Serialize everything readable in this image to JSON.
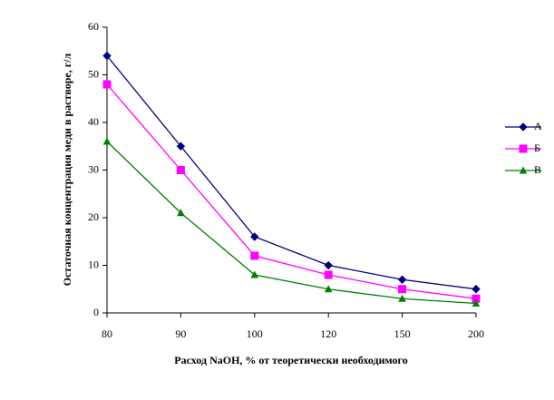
{
  "chart_data": {
    "type": "line",
    "x_label": "Расход NaOH, % от теоретически необходимого",
    "y_label": "Остаточная концентрация меди в растворе, г/л",
    "categories": [
      80,
      90,
      100,
      120,
      150,
      200
    ],
    "series": [
      {
        "name": "А",
        "color": "#000080",
        "marker": "diamond",
        "values": [
          54,
          35,
          16,
          10,
          7,
          5
        ]
      },
      {
        "name": "Б",
        "color": "#ff00ff",
        "marker": "square",
        "values": [
          48,
          30,
          12,
          8,
          5,
          3
        ]
      },
      {
        "name": "В",
        "color": "#008000",
        "marker": "triangle",
        "values": [
          36,
          21,
          8,
          5,
          3,
          2
        ]
      }
    ],
    "ylim": [
      0,
      60
    ],
    "yticks": [
      0,
      10,
      20,
      30,
      40,
      50,
      60
    ],
    "grid": false,
    "legend": "right"
  }
}
